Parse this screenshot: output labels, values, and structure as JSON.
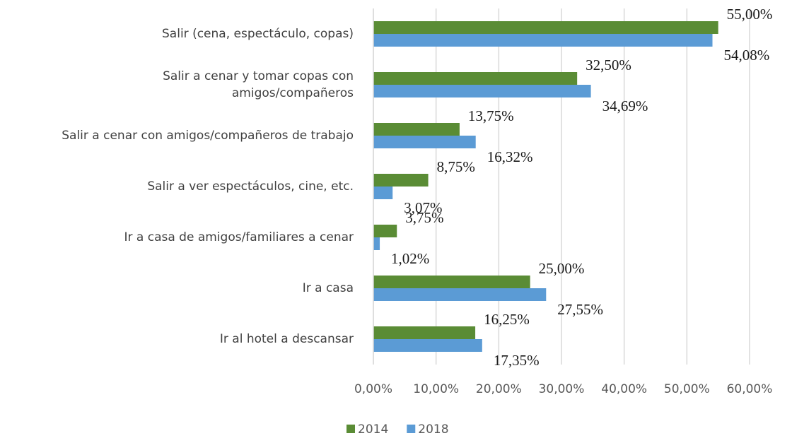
{
  "chart_data": {
    "type": "hbar",
    "categories": [
      "Salir (cena, espectáculo, copas)",
      "Salir a cenar y tomar copas con\namigos/compañeros",
      "Salir a cenar con amigos/compañeros  de trabajo",
      "Salir a ver espectáculos, cine, etc.",
      "Ir a casa de amigos/familiares a cenar",
      "Ir a casa",
      "Ir al hotel a descansar"
    ],
    "series": [
      {
        "name": "2014",
        "color": "#5a8c35",
        "values": [
          55.0,
          32.5,
          13.75,
          8.75,
          3.75,
          25.0,
          16.25
        ],
        "value_labels": [
          "55,00%",
          "32,50%",
          "13,75%",
          "8,75%",
          "3,75%",
          "25,00%",
          "16,25%"
        ]
      },
      {
        "name": "2018",
        "color": "#5b9bd5",
        "values": [
          54.08,
          34.69,
          16.32,
          3.07,
          1.02,
          27.55,
          17.35
        ],
        "value_labels": [
          "54,08%",
          "34,69%",
          "16,32%",
          "3,07%",
          "1,02%",
          "27,55%",
          "17,35%"
        ]
      }
    ],
    "xlim": [
      0,
      60
    ],
    "xticks": [
      {
        "value": 0,
        "label": "0,00%"
      },
      {
        "value": 10,
        "label": "10,00%"
      },
      {
        "value": 20,
        "label": "20,00%"
      },
      {
        "value": 30,
        "label": "30,00%"
      },
      {
        "value": 40,
        "label": "40,00%"
      },
      {
        "value": 50,
        "label": "50,00%"
      },
      {
        "value": 60,
        "label": "60,00%"
      }
    ],
    "grid": true,
    "legend": "bottom"
  }
}
